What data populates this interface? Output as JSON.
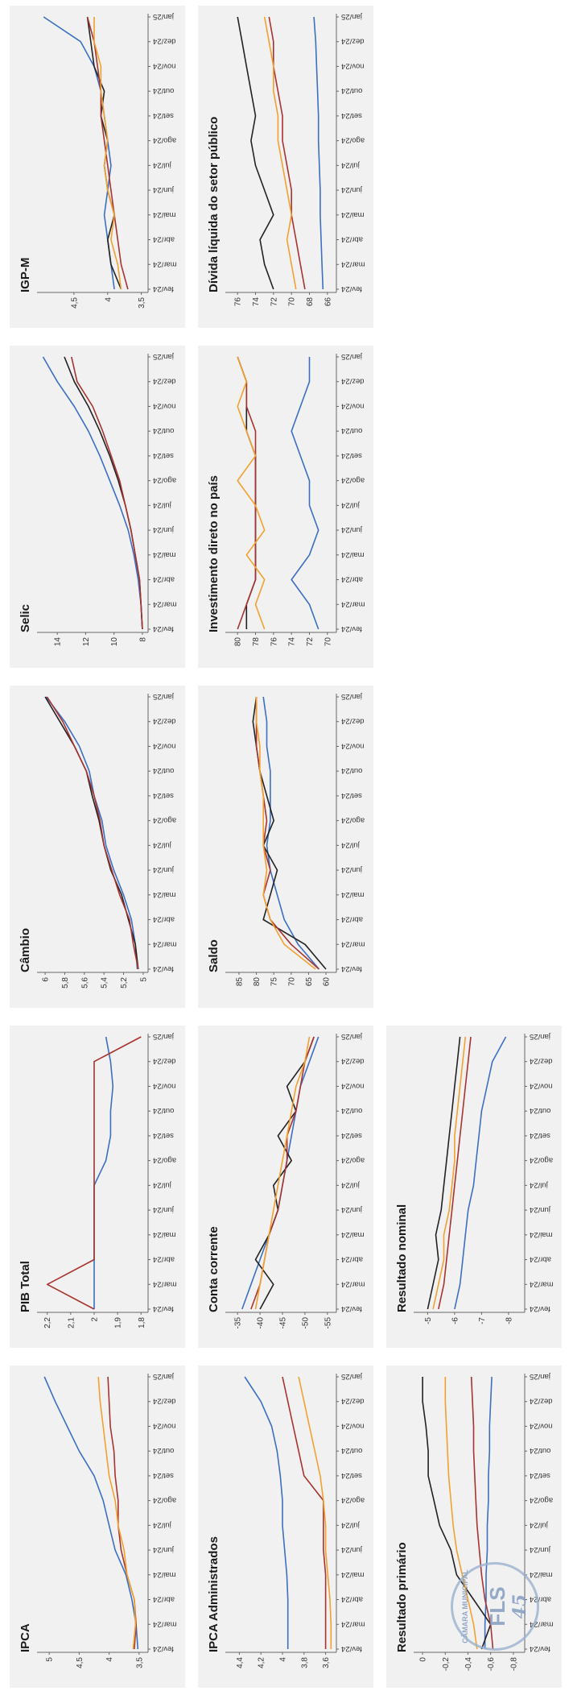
{
  "months": [
    "fev/24",
    "mar/24",
    "abr/24",
    "mai/24",
    "jun/24",
    "jul/24",
    "ago/24",
    "set/24",
    "out/24",
    "nov/24",
    "dez/24",
    "jan/25"
  ],
  "colors": {
    "blue": "#3a6fc4",
    "black": "#222222",
    "red": "#a8332f",
    "orange": "#f2a12e"
  },
  "stamp": {
    "top": "CÂMARA MUNICIPAL",
    "label": "FLS",
    "number": "45"
  },
  "chart_data": [
    {
      "id": "ipca",
      "type": "line",
      "title": "IPCA",
      "yticks": [
        "3,5",
        "4",
        "4,5",
        "5"
      ],
      "ylim": [
        3.35,
        5.15
      ],
      "series": [
        {
          "color": "blue",
          "values": [
            3.52,
            3.55,
            3.62,
            3.72,
            3.9,
            4.0,
            4.1,
            4.25,
            4.5,
            4.7,
            4.9,
            5.08
          ]
        },
        {
          "color": "red",
          "values": [
            3.58,
            3.55,
            3.58,
            3.7,
            3.8,
            3.85,
            3.85,
            3.9,
            3.92,
            3.98,
            4.0,
            4.02
          ]
        },
        {
          "color": "orange",
          "values": [
            3.6,
            3.56,
            3.58,
            3.7,
            3.75,
            3.85,
            3.9,
            4.0,
            4.05,
            4.1,
            4.15,
            4.18
          ]
        }
      ]
    },
    {
      "id": "pib",
      "type": "line",
      "title": "PIB Total",
      "yticks": [
        "1,8",
        "1,9",
        "2",
        "2,1",
        "2,2"
      ],
      "ylim": [
        1.77,
        2.23
      ],
      "series": [
        {
          "color": "blue",
          "values": [
            2.0,
            2.0,
            2.0,
            2.0,
            2.0,
            2.0,
            1.95,
            1.93,
            1.93,
            1.92,
            1.93,
            1.95
          ]
        },
        {
          "color": "red",
          "values": [
            2.0,
            2.2,
            2.0,
            2.0,
            2.0,
            2.0,
            2.0,
            2.0,
            2.0,
            2.0,
            2.0,
            1.8
          ]
        }
      ]
    },
    {
      "id": "cambio",
      "type": "line",
      "title": "Câmbio",
      "yticks": [
        "5",
        "5,2",
        "5,4",
        "5,6",
        "5,8",
        "6"
      ],
      "ylim": [
        4.95,
        6.05
      ],
      "series": [
        {
          "color": "blue",
          "values": [
            5.06,
            5.08,
            5.12,
            5.2,
            5.3,
            5.38,
            5.42,
            5.5,
            5.55,
            5.65,
            5.8,
            5.99
          ]
        },
        {
          "color": "black",
          "values": [
            5.05,
            5.08,
            5.15,
            5.22,
            5.33,
            5.4,
            5.45,
            5.52,
            5.58,
            5.7,
            5.85,
            6.0
          ]
        },
        {
          "color": "red",
          "values": [
            5.05,
            5.1,
            5.14,
            5.24,
            5.32,
            5.4,
            5.44,
            5.5,
            5.58,
            5.7,
            5.82,
            5.98
          ]
        }
      ]
    },
    {
      "id": "selic",
      "type": "line",
      "title": "Selic",
      "yticks": [
        "8",
        "10",
        "12",
        "14"
      ],
      "ylim": [
        7.6,
        15.2
      ],
      "series": [
        {
          "color": "blue",
          "values": [
            8.0,
            8.1,
            8.3,
            8.6,
            9.0,
            9.6,
            10.3,
            11.0,
            11.8,
            12.8,
            14.0,
            15.0
          ]
        },
        {
          "color": "black",
          "values": [
            8.0,
            8.1,
            8.2,
            8.5,
            8.8,
            9.2,
            9.7,
            10.3,
            11.0,
            11.8,
            12.8,
            13.5
          ]
        },
        {
          "color": "red",
          "values": [
            8.0,
            8.1,
            8.2,
            8.5,
            8.8,
            9.2,
            9.6,
            10.2,
            10.8,
            11.5,
            12.6,
            13.0
          ]
        }
      ]
    },
    {
      "id": "igpm",
      "type": "line",
      "title": "IGP-M",
      "yticks": [
        "3,5",
        "4",
        "4,5"
      ],
      "ylim": [
        3.4,
        5.0
      ],
      "series": [
        {
          "color": "blue",
          "values": [
            3.9,
            3.95,
            4.0,
            4.05,
            4.0,
            3.95,
            4.0,
            4.05,
            4.1,
            4.2,
            4.4,
            4.95
          ]
        },
        {
          "color": "black",
          "values": [
            3.8,
            3.95,
            4.0,
            3.9,
            4.0,
            4.05,
            4.0,
            4.1,
            4.05,
            4.2,
            4.25,
            4.3
          ]
        },
        {
          "color": "red",
          "values": [
            3.7,
            3.8,
            3.85,
            3.9,
            3.95,
            4.0,
            4.05,
            4.1,
            4.1,
            4.15,
            4.2,
            4.3
          ]
        },
        {
          "color": "orange",
          "values": [
            3.8,
            3.85,
            3.95,
            3.9,
            4.0,
            4.05,
            4.0,
            4.05,
            4.1,
            4.1,
            4.2,
            4.2
          ]
        }
      ]
    },
    {
      "id": "ipca_adm",
      "type": "line",
      "title": "IPCA Administrados",
      "yticks": [
        "3,6",
        "3,8",
        "4",
        "4,2",
        "4,4"
      ],
      "ylim": [
        3.5,
        4.5
      ],
      "series": [
        {
          "color": "blue",
          "values": [
            3.95,
            3.95,
            3.95,
            3.96,
            3.98,
            4.0,
            4.0,
            4.02,
            4.05,
            4.1,
            4.2,
            4.35
          ]
        },
        {
          "color": "red",
          "values": [
            3.6,
            3.6,
            3.6,
            3.6,
            3.62,
            3.62,
            3.62,
            3.8,
            3.85,
            3.9,
            3.95,
            4.0
          ]
        },
        {
          "color": "orange",
          "values": [
            3.55,
            3.55,
            3.56,
            3.58,
            3.6,
            3.6,
            3.62,
            3.65,
            3.7,
            3.75,
            3.8,
            3.85
          ]
        }
      ]
    },
    {
      "id": "conta",
      "type": "line",
      "title": "Conta corrente",
      "yticks": [
        "-55",
        "-50",
        "-45",
        "-40",
        "-35"
      ],
      "ylim": [
        -57,
        -33
      ],
      "series": [
        {
          "color": "blue",
          "values": [
            -36,
            -38,
            -40,
            -42,
            -44,
            -45,
            -46,
            -47,
            -48,
            -49,
            -51,
            -53
          ]
        },
        {
          "color": "black",
          "values": [
            -40,
            -43,
            -39,
            -42,
            -44,
            -43,
            -47,
            -44,
            -48,
            -46,
            -50,
            -52
          ]
        },
        {
          "color": "red",
          "values": [
            -38,
            -40,
            -41,
            -42,
            -44,
            -45,
            -46,
            -46,
            -48,
            -49,
            -50,
            -52
          ]
        },
        {
          "color": "orange",
          "values": [
            -39,
            -40,
            -41,
            -42,
            -43,
            -44,
            -45,
            -46,
            -47,
            -48,
            -50,
            -51
          ]
        }
      ]
    },
    {
      "id": "saldo",
      "type": "line",
      "title": "Saldo",
      "yticks": [
        "60",
        "65",
        "70",
        "75",
        "80",
        "85"
      ],
      "ylim": [
        57,
        88
      ],
      "series": [
        {
          "color": "blue",
          "values": [
            62,
            68,
            72,
            74,
            76,
            77,
            76,
            76,
            76,
            77,
            77,
            78
          ]
        },
        {
          "color": "black",
          "values": [
            60,
            66,
            78,
            76,
            74,
            78,
            75,
            77,
            79,
            80,
            81,
            80
          ]
        },
        {
          "color": "red",
          "values": [
            62,
            70,
            76,
            78,
            76,
            78,
            77,
            78,
            79,
            80,
            80,
            80
          ]
        },
        {
          "color": "orange",
          "values": [
            63,
            72,
            76,
            78,
            77,
            78,
            78,
            78,
            79,
            79,
            80,
            80
          ]
        }
      ]
    },
    {
      "id": "invest",
      "type": "line",
      "title": "Investimento direto no país",
      "yticks": [
        "70",
        "72",
        "74",
        "76",
        "78",
        "80"
      ],
      "ylim": [
        69,
        81
      ],
      "series": [
        {
          "color": "blue",
          "values": [
            71,
            72,
            74,
            72,
            71,
            72,
            72,
            73,
            74,
            73,
            72,
            72
          ]
        },
        {
          "color": "black",
          "values": [
            79,
            79,
            78,
            78,
            78,
            78,
            78,
            78,
            79,
            79,
            79,
            80
          ]
        },
        {
          "color": "red",
          "values": [
            80,
            79,
            78,
            78,
            78,
            78,
            78,
            78,
            78,
            79,
            79,
            80
          ]
        },
        {
          "color": "orange",
          "values": [
            77,
            78,
            77,
            79,
            77,
            78,
            80,
            78,
            79,
            80,
            79,
            80
          ]
        }
      ]
    },
    {
      "id": "divida",
      "type": "line",
      "title": "Dívida líquida do setor público",
      "yticks": [
        "66",
        "68",
        "70",
        "72",
        "74",
        "76"
      ],
      "ylim": [
        65,
        77
      ],
      "series": [
        {
          "color": "blue",
          "values": [
            66.5,
            66.6,
            66.7,
            66.8,
            66.8,
            66.9,
            67.0,
            67.0,
            67.1,
            67.2,
            67.3,
            67.5
          ]
        },
        {
          "color": "black",
          "values": [
            72.0,
            73.0,
            73.5,
            72.0,
            73.0,
            74.0,
            74.5,
            74.0,
            74.5,
            75.0,
            75.5,
            76.0
          ]
        },
        {
          "color": "red",
          "values": [
            68.5,
            69.0,
            69.5,
            70.0,
            70.0,
            70.5,
            71.0,
            71.0,
            71.5,
            72.0,
            72.0,
            72.5
          ]
        },
        {
          "color": "orange",
          "values": [
            69.5,
            70.0,
            70.5,
            70.0,
            70.5,
            71.0,
            71.5,
            71.5,
            72.0,
            72.0,
            72.5,
            73.0
          ]
        }
      ]
    },
    {
      "id": "resprim",
      "type": "line",
      "title": "Resultado primário",
      "yticks": [
        "-0,8",
        "-0,6",
        "-0,4",
        "-0,2",
        "0"
      ],
      "ylim": [
        -0.9,
        0.05
      ],
      "series": [
        {
          "color": "blue",
          "values": [
            -0.55,
            -0.55,
            -0.56,
            -0.56,
            -0.57,
            -0.57,
            -0.58,
            -0.58,
            -0.59,
            -0.59,
            -0.6,
            -0.61
          ]
        },
        {
          "color": "black",
          "values": [
            -0.52,
            -0.6,
            -0.45,
            -0.3,
            -0.25,
            -0.15,
            -0.1,
            -0.05,
            -0.05,
            -0.03,
            0.0,
            0.0
          ]
        },
        {
          "color": "red",
          "values": [
            -0.62,
            -0.6,
            -0.55,
            -0.52,
            -0.5,
            -0.48,
            -0.47,
            -0.46,
            -0.45,
            -0.45,
            -0.44,
            -0.43
          ]
        },
        {
          "color": "orange",
          "values": [
            -0.48,
            -0.45,
            -0.4,
            -0.35,
            -0.3,
            -0.27,
            -0.25,
            -0.23,
            -0.22,
            -0.21,
            -0.2,
            -0.2
          ]
        }
      ]
    },
    {
      "id": "resnom",
      "type": "line",
      "title": "Resultado nominal",
      "yticks": [
        "-8",
        "-7",
        "-6",
        "-5"
      ],
      "ylim": [
        -8.6,
        -4.6
      ],
      "series": [
        {
          "color": "blue",
          "values": [
            -6.0,
            -6.2,
            -6.3,
            -6.4,
            -6.5,
            -6.7,
            -6.8,
            -6.9,
            -7.0,
            -7.2,
            -7.4,
            -7.9
          ]
        },
        {
          "color": "black",
          "values": [
            -5.0,
            -5.2,
            -5.4,
            -5.3,
            -5.5,
            -5.6,
            -5.7,
            -5.8,
            -5.9,
            -6.0,
            -6.1,
            -6.2
          ]
        },
        {
          "color": "red",
          "values": [
            -5.4,
            -5.6,
            -5.7,
            -5.8,
            -5.9,
            -6.0,
            -6.1,
            -6.2,
            -6.3,
            -6.4,
            -6.5,
            -6.6
          ]
        },
        {
          "color": "orange",
          "values": [
            -5.2,
            -5.4,
            -5.6,
            -5.6,
            -5.8,
            -5.9,
            -6.0,
            -6.0,
            -6.1,
            -6.2,
            -6.3,
            -6.4
          ]
        }
      ]
    }
  ]
}
